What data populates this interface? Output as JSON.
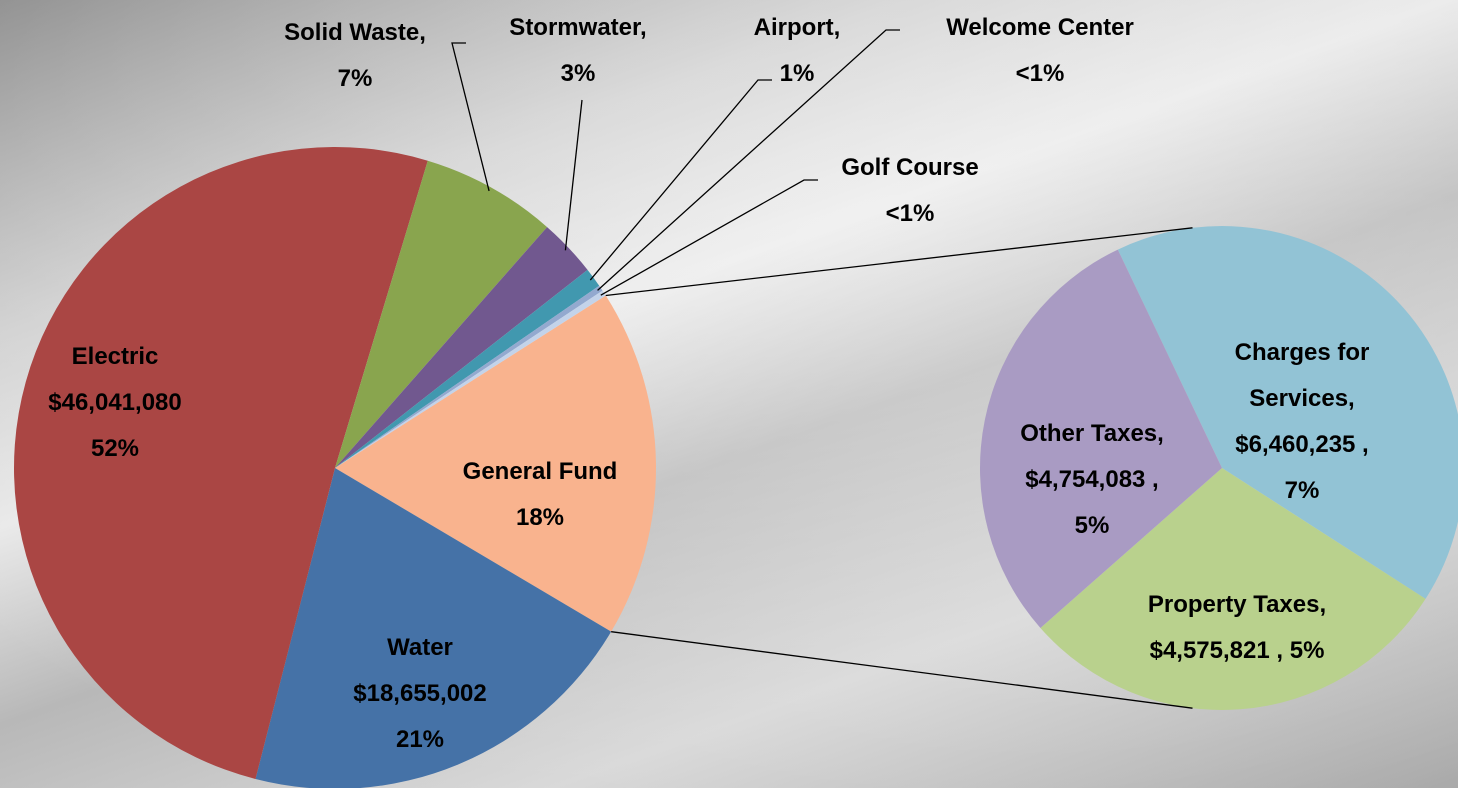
{
  "chart_data": [
    {
      "type": "pie",
      "categories": [
        "General Fund",
        "Water",
        "Electric",
        "Solid Waste,",
        "Stormwater,",
        "Airport,",
        "Welcome Center",
        "Golf Course"
      ],
      "values": [
        18,
        21,
        52,
        7,
        3,
        1,
        0.3,
        0.3
      ],
      "value_labels": [
        "18%",
        "21%",
        "52%",
        "7%",
        "3%",
        "1%",
        "<1%",
        "<1%"
      ],
      "amount_labels": [
        null,
        "$18,655,002",
        "$46,041,080",
        null,
        null,
        null,
        null,
        null
      ],
      "colors": [
        "#f9b38e",
        "#4572a7",
        "#aa4644",
        "#89a54e",
        "#71588f",
        "#4198af",
        "#93a9cf",
        "#c3d3ea"
      ]
    },
    {
      "type": "pie",
      "categories": [
        "Charges for Services,",
        "Property Taxes,",
        "Other Taxes,"
      ],
      "values": [
        7,
        5,
        5
      ],
      "value_labels": [
        "7%",
        "5%",
        "5%"
      ],
      "amount_labels": [
        "$6,460,235 ,",
        "$4,575,821 ,",
        "$4,754,083 ,"
      ],
      "colors": [
        "#92c3d5",
        "#b9d18d",
        "#a99bc3"
      ]
    }
  ]
}
